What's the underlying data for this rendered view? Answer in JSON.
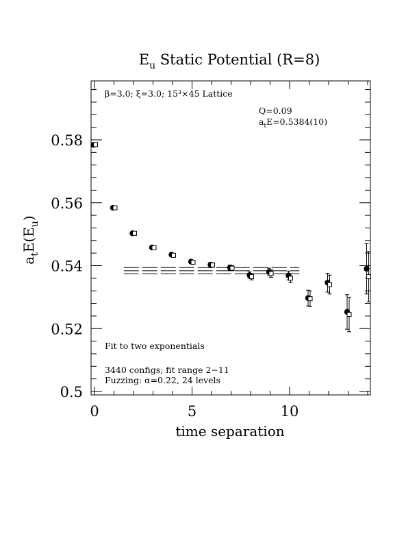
{
  "chart_data": {
    "type": "scatter",
    "title": "E",
    "title_sub": "u",
    "title_rest": " Static Potential (R=8)",
    "xlabel": "time separation",
    "ylabel_a": "a",
    "ylabel_t": "t",
    "ylabel_mid": "E(E",
    "ylabel_u": "u",
    "ylabel_end": ")",
    "xlim": [
      0,
      14
    ],
    "ylim": [
      0.5,
      0.5985
    ],
    "x_ticks": [
      0,
      5,
      10
    ],
    "y_ticks": [
      0.5,
      0.52,
      0.54,
      0.56,
      0.58
    ],
    "y_tick_labels": [
      "0.5",
      "0.52",
      "0.54",
      "0.56",
      "0.58"
    ],
    "annotations": {
      "lattice": "β=3.0; ξ=3.0; 15³×45 Lattice",
      "q": "Q=0.09",
      "ae_a": "a",
      "ae_t": "t",
      "ae_rest": "E=0.5384(10)",
      "fit": "Fit to two exponentials",
      "configs": "3440 configs; fit range 2−11",
      "fuzzing": "Fuzzing: α=0.22, 24 levels"
    },
    "series": [
      {
        "marker": "filled-circle",
        "x": [
          0,
          1,
          2,
          3,
          4,
          5,
          6,
          7,
          8,
          9,
          10,
          11,
          12,
          13,
          14
        ],
        "y": [
          0.5784,
          0.5584,
          0.5503,
          0.5458,
          0.5435,
          0.5413,
          0.5403,
          0.5394,
          0.537,
          0.538,
          0.5369,
          0.5297,
          0.5346,
          0.5253,
          0.539
        ],
        "err": [
          0.0003,
          0.0004,
          0.0005,
          0.0005,
          0.0006,
          0.0006,
          0.0007,
          0.0008,
          0.001,
          0.0012,
          0.0014,
          0.0025,
          0.003,
          0.0055,
          0.008
        ]
      },
      {
        "marker": "open-square",
        "x": [
          0,
          1,
          2,
          3,
          4,
          5,
          6,
          7,
          8,
          9,
          10,
          11,
          12,
          13,
          14
        ],
        "y": [
          0.5785,
          0.5584,
          0.5503,
          0.5457,
          0.5433,
          0.5411,
          0.5402,
          0.5392,
          0.5365,
          0.5375,
          0.536,
          0.5295,
          0.534,
          0.5245,
          0.5365
        ],
        "err": [
          0.0003,
          0.0004,
          0.0005,
          0.0005,
          0.0006,
          0.0006,
          0.0007,
          0.0008,
          0.001,
          0.0012,
          0.0014,
          0.0025,
          0.003,
          0.0055,
          0.008
        ]
      }
    ],
    "fit": {
      "x_range": [
        1.5,
        10.5
      ],
      "central": 0.5384,
      "band": [
        0.5374,
        0.5394
      ]
    }
  }
}
